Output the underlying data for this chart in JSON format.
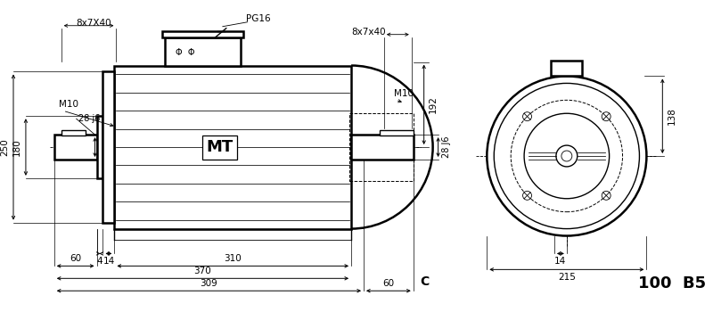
{
  "title": "100  B5",
  "bg_color": "#ffffff",
  "line_color": "#000000",
  "annotations": {
    "keyway_left": "8x7X40",
    "pg16": "PG16",
    "keyway_right": "8x7x40",
    "m10_left": "M10",
    "m10_right": "M10",
    "dim_250": "250",
    "dim_180": "180",
    "dim_28j6_left": "28 j6",
    "dim_192": "192",
    "dim_28J6_right": "28 J6",
    "dim_4": "4",
    "dim_14_left": "14",
    "dim_60_left": "60",
    "dim_310": "310",
    "dim_370": "370",
    "dim_309": "309",
    "dim_60_right": "60",
    "letter_C": "C",
    "dim_138": "138",
    "dim_14_right": "14",
    "dim_215": "215",
    "label_MT": "MT",
    "phi_symbols": "Φ  Φ"
  },
  "lw_thick": 1.8,
  "lw_med": 1.0,
  "lw_thin": 0.6,
  "lw_dim": 0.7
}
